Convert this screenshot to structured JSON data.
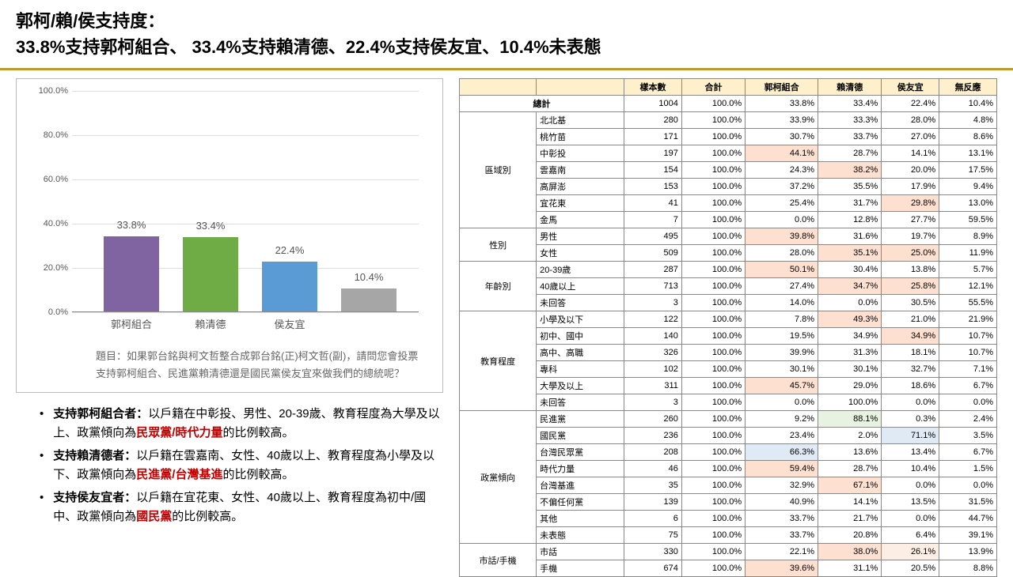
{
  "header": {
    "title_line1": "郭柯/賴/侯支持度：",
    "title_line2": "33.8%支持郭柯組合、 33.4%支持賴清德、22.4%支持侯友宜、10.4%未表態"
  },
  "chart": {
    "type": "bar",
    "ylim": [
      0,
      100
    ],
    "y_ticks": [
      0,
      20,
      40,
      60,
      80,
      100
    ],
    "y_tick_labels": [
      "0.0%",
      "20.0%",
      "40.0%",
      "60.0%",
      "80.0%",
      "100.0%"
    ],
    "categories": [
      "郭柯組合",
      "賴清德",
      "侯友宜",
      ""
    ],
    "values": [
      33.8,
      33.4,
      22.4,
      10.4
    ],
    "value_labels": [
      "33.8%",
      "33.4%",
      "22.4%",
      "10.4%"
    ],
    "bar_colors": [
      "#8064a2",
      "#6fac46",
      "#5b9bd5",
      "#a6a6a6"
    ],
    "question_prefix": "題目：",
    "question_text": "如果郭台銘與柯文哲整合成郭台銘(正)柯文哲(副)，請問您會投票支持郭柯組合、民進黨賴清德還是國民黨侯友宜來做我們的總統呢？"
  },
  "bullets": [
    {
      "lead": "支持郭柯組合者：",
      "parts": [
        "以戶籍在中彰投、男性、20-39歲、教育程度為大學及以上、政黨傾向為",
        {
          "red": "民眾黨/時代力量"
        },
        "的比例較高。"
      ]
    },
    {
      "lead": "支持賴清德者：",
      "parts": [
        "以戶籍在雲嘉南、女性、40歲以上、教育程度為小學及以下、政黨傾向為",
        {
          "red": "民進黨/台灣基進"
        },
        "的比例較高。"
      ]
    },
    {
      "lead": "支持侯友宜者：",
      "parts": [
        "以戶籍在宜花東、女性、40歲以上、教育程度為初中/國中、政黨傾向為",
        {
          "red": "國民黨"
        },
        "的比例較高。"
      ]
    }
  ],
  "table": {
    "headers": [
      "",
      "",
      "樣本數",
      "合計",
      "郭柯組合",
      "賴清德",
      "侯友宜",
      "無反應"
    ],
    "highlight_colors": {
      "orange": "#fde0d0",
      "lightorange": "#fdeee5",
      "green": "#e8f2e0",
      "blue": "#e0eaf5"
    },
    "groups": [
      {
        "name": "總計",
        "span": 2,
        "rows": [
          {
            "label": "",
            "cells": [
              "1004",
              "100.0%",
              "33.8%",
              "33.4%",
              "22.4%",
              "10.4%"
            ],
            "hl": {}
          }
        ]
      },
      {
        "name": "區域別",
        "rows": [
          {
            "label": "北北基",
            "cells": [
              "280",
              "100.0%",
              "33.9%",
              "33.3%",
              "28.0%",
              "4.8%"
            ],
            "hl": {}
          },
          {
            "label": "桃竹苗",
            "cells": [
              "171",
              "100.0%",
              "30.7%",
              "33.7%",
              "27.0%",
              "8.6%"
            ],
            "hl": {}
          },
          {
            "label": "中彰投",
            "cells": [
              "197",
              "100.0%",
              "44.1%",
              "28.7%",
              "14.1%",
              "13.1%"
            ],
            "hl": {
              "2": "orange"
            }
          },
          {
            "label": "雲嘉南",
            "cells": [
              "154",
              "100.0%",
              "24.3%",
              "38.2%",
              "20.0%",
              "17.5%"
            ],
            "hl": {
              "3": "orange"
            }
          },
          {
            "label": "高屏澎",
            "cells": [
              "153",
              "100.0%",
              "37.2%",
              "35.5%",
              "17.9%",
              "9.4%"
            ],
            "hl": {}
          },
          {
            "label": "宜花東",
            "cells": [
              "41",
              "100.0%",
              "25.4%",
              "31.7%",
              "29.8%",
              "13.0%"
            ],
            "hl": {
              "4": "orange"
            }
          },
          {
            "label": "金馬",
            "cells": [
              "7",
              "100.0%",
              "0.0%",
              "12.8%",
              "27.7%",
              "59.5%"
            ],
            "hl": {}
          }
        ]
      },
      {
        "name": "性別",
        "rows": [
          {
            "label": "男性",
            "cells": [
              "495",
              "100.0%",
              "39.8%",
              "31.6%",
              "19.7%",
              "8.9%"
            ],
            "hl": {
              "2": "orange"
            }
          },
          {
            "label": "女性",
            "cells": [
              "509",
              "100.0%",
              "28.0%",
              "35.1%",
              "25.0%",
              "11.9%"
            ],
            "hl": {
              "3": "orange",
              "4": "orange"
            }
          }
        ]
      },
      {
        "name": "年齡別",
        "rows": [
          {
            "label": "20-39歲",
            "cells": [
              "287",
              "100.0%",
              "50.1%",
              "30.4%",
              "13.8%",
              "5.7%"
            ],
            "hl": {
              "2": "orange"
            }
          },
          {
            "label": "40歲以上",
            "cells": [
              "713",
              "100.0%",
              "27.4%",
              "34.7%",
              "25.8%",
              "12.1%"
            ],
            "hl": {
              "3": "orange",
              "4": "orange"
            }
          },
          {
            "label": "未回答",
            "cells": [
              "3",
              "100.0%",
              "14.0%",
              "0.0%",
              "30.5%",
              "55.5%"
            ],
            "hl": {}
          }
        ]
      },
      {
        "name": "教育程度",
        "rows": [
          {
            "label": "小學及以下",
            "cells": [
              "122",
              "100.0%",
              "7.8%",
              "49.3%",
              "21.0%",
              "21.9%"
            ],
            "hl": {
              "3": "orange"
            }
          },
          {
            "label": "初中、國中",
            "cells": [
              "140",
              "100.0%",
              "19.5%",
              "34.9%",
              "34.9%",
              "10.7%"
            ],
            "hl": {
              "4": "orange"
            }
          },
          {
            "label": "高中、高職",
            "cells": [
              "326",
              "100.0%",
              "39.9%",
              "31.3%",
              "18.1%",
              "10.7%"
            ],
            "hl": {}
          },
          {
            "label": "專科",
            "cells": [
              "102",
              "100.0%",
              "30.1%",
              "30.1%",
              "32.7%",
              "7.1%"
            ],
            "hl": {}
          },
          {
            "label": "大學及以上",
            "cells": [
              "311",
              "100.0%",
              "45.7%",
              "29.0%",
              "18.6%",
              "6.7%"
            ],
            "hl": {
              "2": "orange"
            }
          },
          {
            "label": "未回答",
            "cells": [
              "3",
              "100.0%",
              "0.0%",
              "100.0%",
              "0.0%",
              "0.0%"
            ],
            "hl": {}
          }
        ]
      },
      {
        "name": "政黨傾向",
        "rows": [
          {
            "label": "民進黨",
            "cells": [
              "260",
              "100.0%",
              "9.2%",
              "88.1%",
              "0.3%",
              "2.4%"
            ],
            "hl": {
              "3": "green"
            }
          },
          {
            "label": "國民黨",
            "cells": [
              "236",
              "100.0%",
              "23.4%",
              "2.0%",
              "71.1%",
              "3.5%"
            ],
            "hl": {
              "4": "blue"
            }
          },
          {
            "label": "台灣民眾黨",
            "cells": [
              "208",
              "100.0%",
              "66.3%",
              "13.6%",
              "13.4%",
              "6.7%"
            ],
            "hl": {
              "2": "blue"
            }
          },
          {
            "label": "時代力量",
            "cells": [
              "46",
              "100.0%",
              "59.4%",
              "28.7%",
              "10.4%",
              "1.5%"
            ],
            "hl": {
              "2": "orange"
            }
          },
          {
            "label": "台灣基進",
            "cells": [
              "35",
              "100.0%",
              "32.9%",
              "67.1%",
              "0.0%",
              "0.0%"
            ],
            "hl": {
              "3": "orange"
            }
          },
          {
            "label": "不偏任何黨",
            "cells": [
              "139",
              "100.0%",
              "40.9%",
              "14.1%",
              "13.5%",
              "31.5%"
            ],
            "hl": {}
          },
          {
            "label": "其他",
            "cells": [
              "6",
              "100.0%",
              "33.7%",
              "21.7%",
              "0.0%",
              "44.7%"
            ],
            "hl": {}
          },
          {
            "label": "未表態",
            "cells": [
              "75",
              "100.0%",
              "33.7%",
              "20.8%",
              "6.4%",
              "39.1%"
            ],
            "hl": {}
          }
        ]
      },
      {
        "name": "市話/手機",
        "rows": [
          {
            "label": "市話",
            "cells": [
              "330",
              "100.0%",
              "22.1%",
              "38.0%",
              "26.1%",
              "13.9%"
            ],
            "hl": {
              "3": "orange",
              "4": "lightorange"
            }
          },
          {
            "label": "手機",
            "cells": [
              "674",
              "100.0%",
              "39.6%",
              "31.1%",
              "20.5%",
              "8.8%"
            ],
            "hl": {
              "2": "orange"
            }
          }
        ]
      }
    ]
  }
}
